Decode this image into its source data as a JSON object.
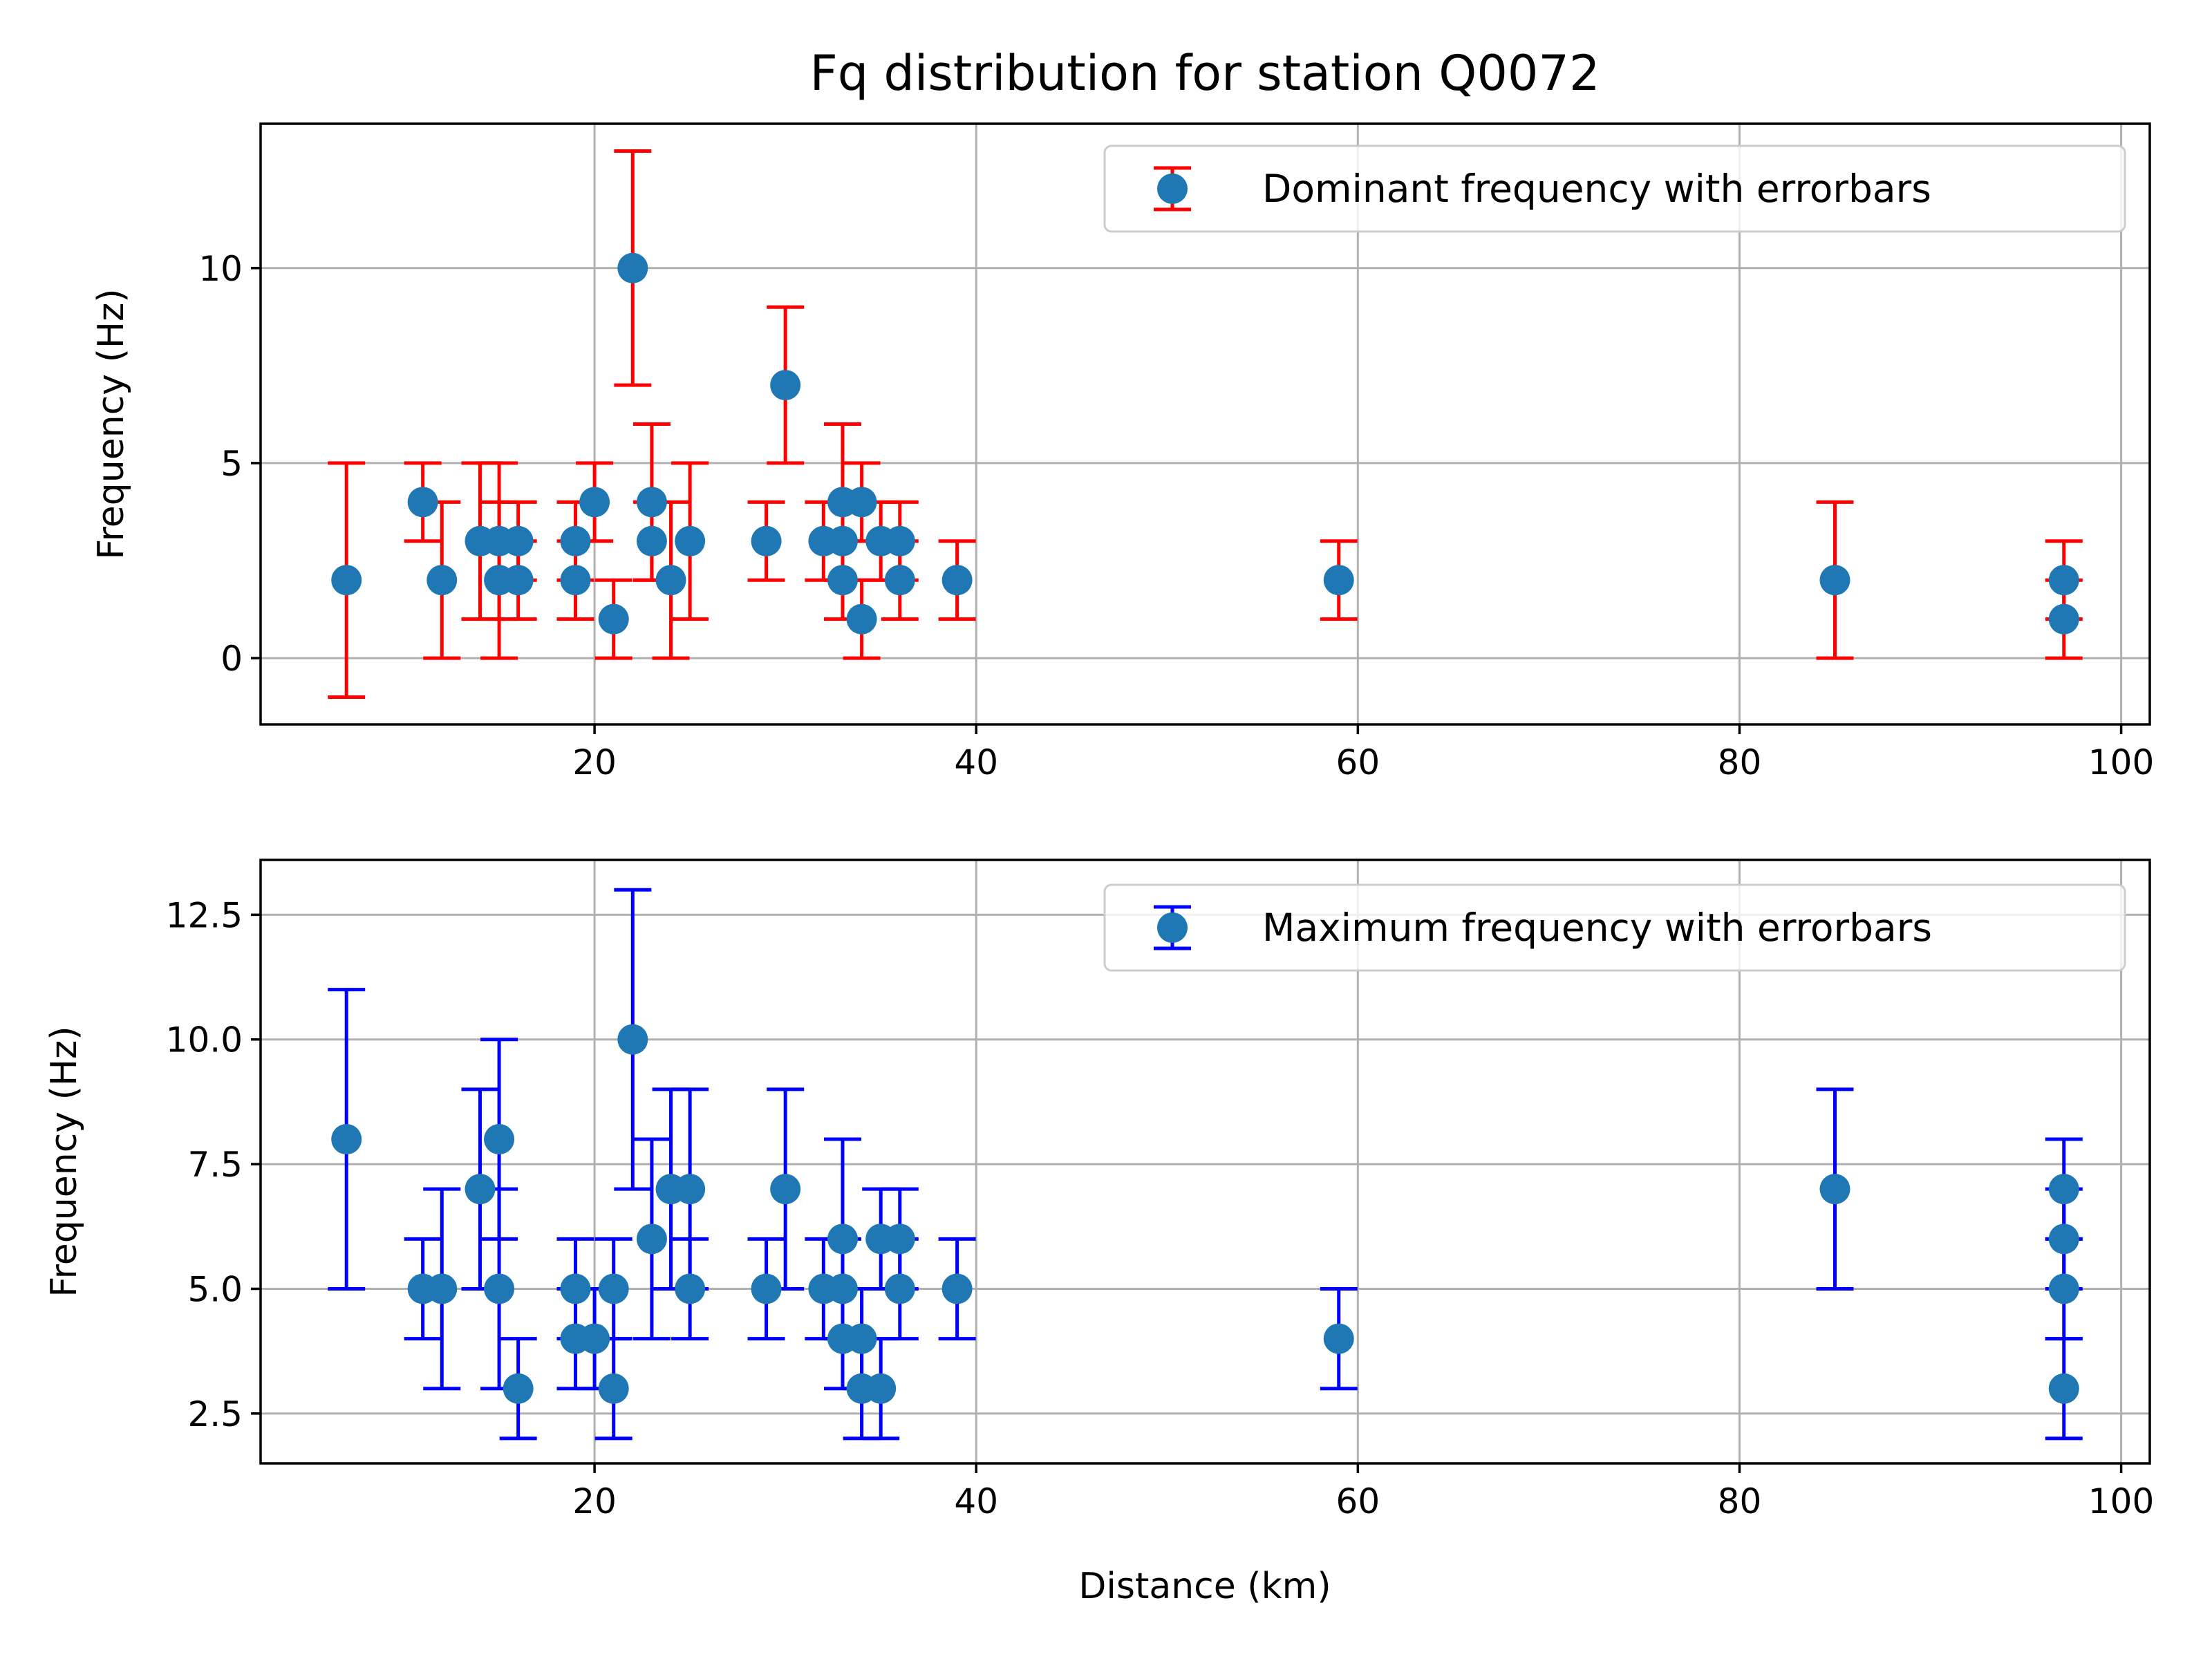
{
  "chart_data": [
    {
      "type": "scatter",
      "title": "Fq distribution for station Q0072",
      "xlabel": "",
      "ylabel": "Frequency (Hz)",
      "xlim": [
        2.5,
        101.5
      ],
      "ylim": [
        -1.7,
        13.7
      ],
      "xticks": [
        20,
        40,
        60,
        80,
        100
      ],
      "yticks": [
        0,
        5,
        10
      ],
      "ytick_labels": [
        "0",
        "5",
        "10"
      ],
      "grid": true,
      "legend": {
        "position": "top-right",
        "label": "Dominant frequency with errorbars"
      },
      "colors": {
        "marker": "#1f77b4",
        "errorbar": "#ff0000"
      },
      "series": [
        {
          "name": "Dominant frequency with errorbars",
          "points": [
            {
              "x": 7,
              "y": 2,
              "ymin": -1,
              "ymax": 5
            },
            {
              "x": 11,
              "y": 4,
              "ymin": 3,
              "ymax": 5
            },
            {
              "x": 12,
              "y": 2,
              "ymin": 0,
              "ymax": 4
            },
            {
              "x": 14,
              "y": 3,
              "ymin": 1,
              "ymax": 5
            },
            {
              "x": 15,
              "y": 3,
              "ymin": 1,
              "ymax": 5
            },
            {
              "x": 15,
              "y": 2,
              "ymin": 0,
              "ymax": 4
            },
            {
              "x": 16,
              "y": 3,
              "ymin": 2,
              "ymax": 4
            },
            {
              "x": 16,
              "y": 2,
              "ymin": 1,
              "ymax": 3
            },
            {
              "x": 19,
              "y": 3,
              "ymin": 2,
              "ymax": 4
            },
            {
              "x": 19,
              "y": 2,
              "ymin": 1,
              "ymax": 3
            },
            {
              "x": 20,
              "y": 4,
              "ymin": 3,
              "ymax": 5
            },
            {
              "x": 21,
              "y": 1,
              "ymin": 0,
              "ymax": 2
            },
            {
              "x": 22,
              "y": 10,
              "ymin": 7,
              "ymax": 13
            },
            {
              "x": 23,
              "y": 4,
              "ymin": 2,
              "ymax": 6
            },
            {
              "x": 23,
              "y": 3,
              "ymin": 2,
              "ymax": 4
            },
            {
              "x": 24,
              "y": 2,
              "ymin": 0,
              "ymax": 4
            },
            {
              "x": 25,
              "y": 3,
              "ymin": 1,
              "ymax": 5
            },
            {
              "x": 29,
              "y": 3,
              "ymin": 2,
              "ymax": 4
            },
            {
              "x": 30,
              "y": 7,
              "ymin": 5,
              "ymax": 9
            },
            {
              "x": 32,
              "y": 3,
              "ymin": 2,
              "ymax": 4
            },
            {
              "x": 33,
              "y": 4,
              "ymin": 2,
              "ymax": 6
            },
            {
              "x": 33,
              "y": 3,
              "ymin": 2,
              "ymax": 4
            },
            {
              "x": 33,
              "y": 2,
              "ymin": 1,
              "ymax": 3
            },
            {
              "x": 34,
              "y": 4,
              "ymin": 3,
              "ymax": 5
            },
            {
              "x": 34,
              "y": 1,
              "ymin": 0,
              "ymax": 2
            },
            {
              "x": 35,
              "y": 3,
              "ymin": 2,
              "ymax": 4
            },
            {
              "x": 36,
              "y": 3,
              "ymin": 2,
              "ymax": 4
            },
            {
              "x": 36,
              "y": 2,
              "ymin": 1,
              "ymax": 3
            },
            {
              "x": 39,
              "y": 2,
              "ymin": 1,
              "ymax": 3
            },
            {
              "x": 59,
              "y": 2,
              "ymin": 1,
              "ymax": 3
            },
            {
              "x": 85,
              "y": 2,
              "ymin": 0,
              "ymax": 4
            },
            {
              "x": 97,
              "y": 2,
              "ymin": 1,
              "ymax": 3
            },
            {
              "x": 97,
              "y": 1,
              "ymin": 0,
              "ymax": 2
            }
          ]
        }
      ]
    },
    {
      "type": "scatter",
      "title": "",
      "xlabel": "Distance (km)",
      "ylabel": "Frequency (Hz)",
      "xlim": [
        2.5,
        101.5
      ],
      "ylim": [
        1.5,
        13.6
      ],
      "xticks": [
        20,
        40,
        60,
        80,
        100
      ],
      "yticks": [
        2.5,
        5.0,
        7.5,
        10.0,
        12.5
      ],
      "ytick_labels": [
        "2.5",
        "5.0",
        "7.5",
        "10.0",
        "12.5"
      ],
      "grid": true,
      "legend": {
        "position": "top-right",
        "label": "Maximum frequency with errorbars"
      },
      "colors": {
        "marker": "#1f77b4",
        "errorbar": "#0000ff"
      },
      "series": [
        {
          "name": "Maximum frequency with errorbars",
          "points": [
            {
              "x": 7,
              "y": 8,
              "ymin": 5,
              "ymax": 11
            },
            {
              "x": 11,
              "y": 5,
              "ymin": 4,
              "ymax": 6
            },
            {
              "x": 12,
              "y": 5,
              "ymin": 3,
              "ymax": 7
            },
            {
              "x": 14,
              "y": 7,
              "ymin": 5,
              "ymax": 9
            },
            {
              "x": 15,
              "y": 8,
              "ymin": 6,
              "ymax": 10
            },
            {
              "x": 15,
              "y": 5,
              "ymin": 3,
              "ymax": 7
            },
            {
              "x": 16,
              "y": 3,
              "ymin": 2,
              "ymax": 4
            },
            {
              "x": 19,
              "y": 5,
              "ymin": 4,
              "ymax": 6
            },
            {
              "x": 19,
              "y": 4,
              "ymin": 3,
              "ymax": 5
            },
            {
              "x": 20,
              "y": 4,
              "ymin": 3,
              "ymax": 5
            },
            {
              "x": 21,
              "y": 5,
              "ymin": 4,
              "ymax": 6
            },
            {
              "x": 21,
              "y": 3,
              "ymin": 2,
              "ymax": 4
            },
            {
              "x": 22,
              "y": 10,
              "ymin": 7,
              "ymax": 13
            },
            {
              "x": 23,
              "y": 6,
              "ymin": 4,
              "ymax": 8
            },
            {
              "x": 24,
              "y": 7,
              "ymin": 5,
              "ymax": 9
            },
            {
              "x": 25,
              "y": 7,
              "ymin": 5,
              "ymax": 9
            },
            {
              "x": 25,
              "y": 5,
              "ymin": 4,
              "ymax": 6
            },
            {
              "x": 29,
              "y": 5,
              "ymin": 4,
              "ymax": 6
            },
            {
              "x": 30,
              "y": 7,
              "ymin": 5,
              "ymax": 9
            },
            {
              "x": 32,
              "y": 5,
              "ymin": 4,
              "ymax": 6
            },
            {
              "x": 33,
              "y": 6,
              "ymin": 4,
              "ymax": 8
            },
            {
              "x": 33,
              "y": 5,
              "ymin": 4,
              "ymax": 6
            },
            {
              "x": 33,
              "y": 4,
              "ymin": 3,
              "ymax": 5
            },
            {
              "x": 34,
              "y": 4,
              "ymin": 3,
              "ymax": 5
            },
            {
              "x": 34,
              "y": 3,
              "ymin": 2,
              "ymax": 4
            },
            {
              "x": 35,
              "y": 6,
              "ymin": 5,
              "ymax": 7
            },
            {
              "x": 35,
              "y": 3,
              "ymin": 2,
              "ymax": 4
            },
            {
              "x": 36,
              "y": 6,
              "ymin": 5,
              "ymax": 7
            },
            {
              "x": 36,
              "y": 5,
              "ymin": 4,
              "ymax": 6
            },
            {
              "x": 39,
              "y": 5,
              "ymin": 4,
              "ymax": 6
            },
            {
              "x": 59,
              "y": 4,
              "ymin": 3,
              "ymax": 5
            },
            {
              "x": 85,
              "y": 7,
              "ymin": 5,
              "ymax": 9
            },
            {
              "x": 97,
              "y": 7,
              "ymin": 6,
              "ymax": 8
            },
            {
              "x": 97,
              "y": 6,
              "ymin": 5,
              "ymax": 7
            },
            {
              "x": 97,
              "y": 5,
              "ymin": 4,
              "ymax": 6
            },
            {
              "x": 97,
              "y": 3,
              "ymin": 2,
              "ymax": 4
            }
          ]
        }
      ]
    }
  ]
}
